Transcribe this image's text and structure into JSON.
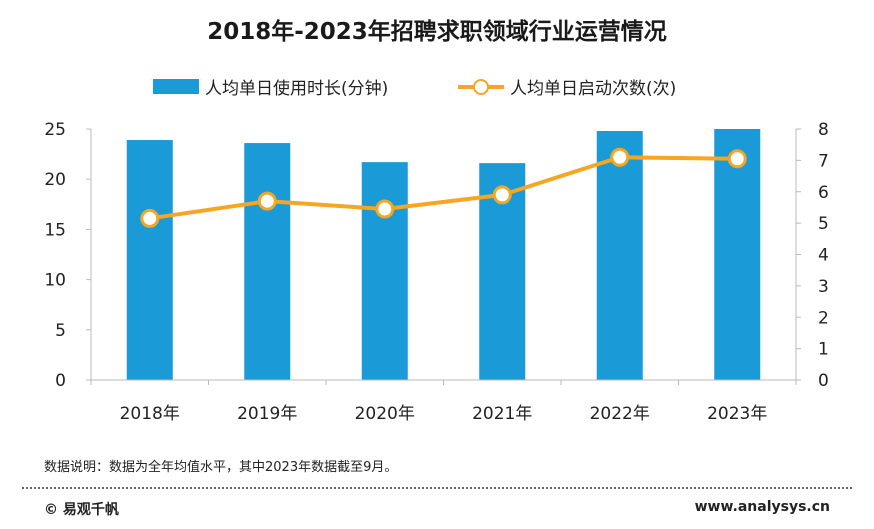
{
  "header": {
    "title": "2018年-2023年招聘求职领域行业运营情况"
  },
  "chart_data": {
    "type": "bar",
    "title": "2018年-2023年招聘求职领域行业运营情况",
    "categories": [
      "2018年",
      "2019年",
      "2020年",
      "2021年",
      "2022年",
      "2023年"
    ],
    "series": [
      {
        "name": "人均单日使用时长(分钟)",
        "type": "bar",
        "axis": "left",
        "values": [
          23.9,
          23.6,
          21.7,
          21.6,
          24.8,
          25.0
        ],
        "color": "#1a9ad6"
      },
      {
        "name": "人均单日启动次数(次)",
        "type": "line",
        "axis": "right",
        "values": [
          5.15,
          5.7,
          5.45,
          5.9,
          7.1,
          7.05
        ],
        "color": "#f5a623"
      }
    ],
    "y_left": {
      "lim": [
        0,
        25
      ],
      "ticks": [
        "0",
        "5",
        "10",
        "15",
        "20",
        "25"
      ]
    },
    "y_right": {
      "lim": [
        0,
        8
      ],
      "ticks": [
        "0",
        "1",
        "2",
        "3",
        "4",
        "5",
        "6",
        "7",
        "8"
      ]
    },
    "legend_position": "top",
    "grid": false
  },
  "footer": {
    "note": "数据说明：数据为全年均值水平，其中2023年数据截至9月。",
    "copyright": "© 易观千帆",
    "website": "www.analysys.cn"
  }
}
